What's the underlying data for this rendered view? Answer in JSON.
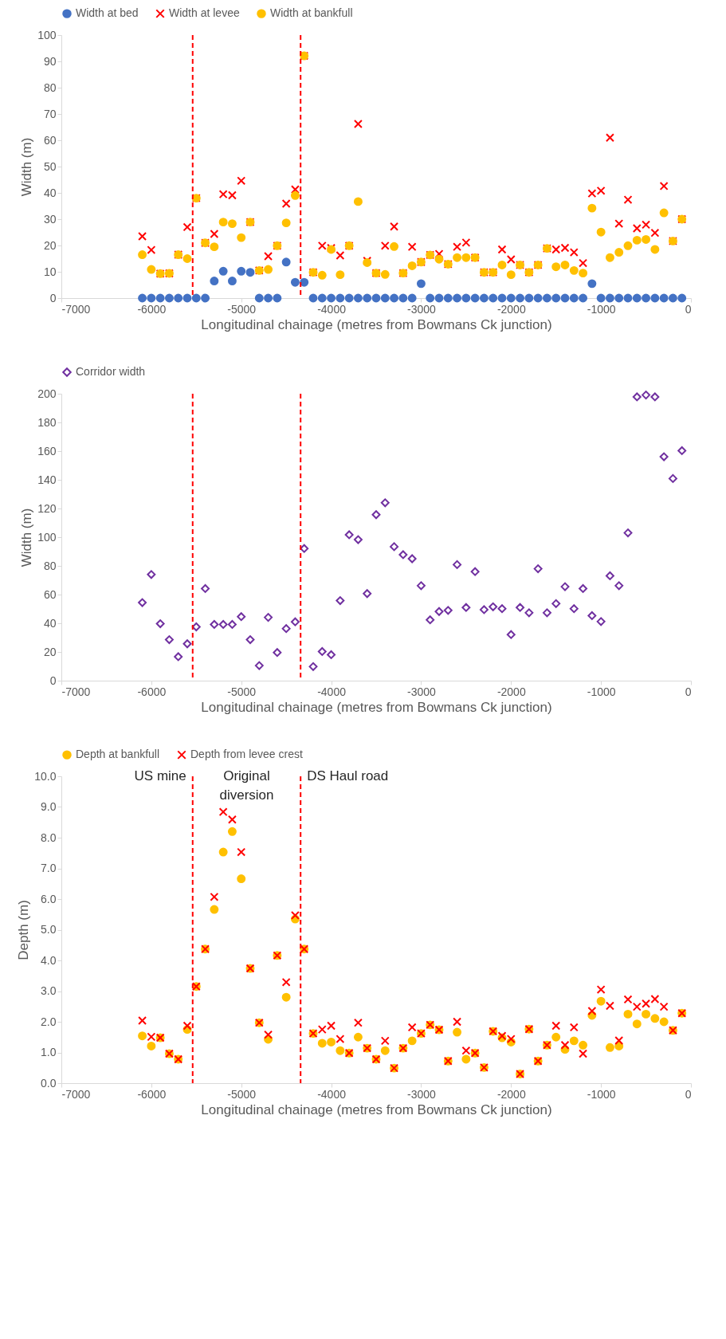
{
  "chart_data": [
    {
      "type": "scatter",
      "xlabel": "Longitudinal chainage (metres from Bowmans Ck junction)",
      "ylabel": "Width (m)",
      "legend": "top",
      "grid": false,
      "x": [
        -6100,
        -6000,
        -5900,
        -5800,
        -5700,
        -5600,
        -5500,
        -5400,
        -5300,
        -5200,
        -5100,
        -5000,
        -4900,
        -4800,
        -4700,
        -4600,
        -4500,
        -4400,
        -4300,
        -4200,
        -4100,
        -4000,
        -3900,
        -3800,
        -3700,
        -3600,
        -3500,
        -3400,
        -3300,
        -3200,
        -3100,
        -3000,
        -2900,
        -2800,
        -2700,
        -2600,
        -2500,
        -2400,
        -2300,
        -2200,
        -2100,
        -2000,
        -1900,
        -1800,
        -1700,
        -1600,
        -1500,
        -1400,
        -1300,
        -1200,
        -1100,
        -1000,
        -900,
        -800,
        -700,
        -600,
        -500,
        -400,
        -300,
        -200,
        -100
      ],
      "xlim": [
        -7000,
        0
      ],
      "xticks": [
        -7000,
        -6000,
        -5000,
        -4000,
        -3000,
        -2000,
        -1000,
        0
      ],
      "ylim": [
        0,
        100
      ],
      "yticks": [
        0,
        10,
        20,
        30,
        40,
        50,
        60,
        70,
        80,
        90,
        100
      ],
      "series": [
        {
          "name": "Width at bed",
          "color": "#4472c4",
          "marker": "circle",
          "values": [
            0,
            0,
            0,
            0,
            0,
            0,
            0,
            0,
            6.5,
            10.2,
            6.5,
            10.2,
            9.8,
            0,
            0,
            0,
            13.7,
            6,
            6,
            0,
            0,
            0,
            0,
            0,
            0,
            0,
            0,
            0,
            0,
            0,
            0,
            5.5,
            0,
            0,
            0,
            0,
            0,
            0,
            0,
            0,
            0,
            0,
            0,
            0,
            0,
            0,
            0,
            0,
            0,
            0,
            5.5,
            0,
            0,
            0,
            0,
            0,
            0,
            0,
            0,
            0,
            0
          ]
        },
        {
          "name": "Width at levee",
          "color": "#ff0000",
          "marker": "cross",
          "values": [
            23.5,
            18.3,
            9.3,
            9.4,
            16.5,
            27,
            38.0,
            21.0,
            24.4,
            39.5,
            39.1,
            44.6,
            28.9,
            10.5,
            15.9,
            19.9,
            35.9,
            41.3,
            92.1,
            9.8,
            19.9,
            19.0,
            16.2,
            19.9,
            66.2,
            14.2,
            9.5,
            19.9,
            27.2,
            9.5,
            19.5,
            13.7,
            16.4,
            16.8,
            12.9,
            19.5,
            21.1,
            15.4,
            9.8,
            9.8,
            18.5,
            14.7,
            12.6,
            9.8,
            12.6,
            18.9,
            18.5,
            19.1,
            17.4,
            13.3,
            39.8,
            40.8,
            61.0,
            28.3,
            37.4,
            26.5,
            27.9,
            24.8,
            42.6,
            21.7,
            30.0
          ]
        },
        {
          "name": "Width at bankfull",
          "color": "#ffc000",
          "marker": "circle",
          "values": [
            16.5,
            10.9,
            9.3,
            9.4,
            16.5,
            15.0,
            38.0,
            21.0,
            19.5,
            28.9,
            28.3,
            23.0,
            28.9,
            10.5,
            10.9,
            19.9,
            28.6,
            39.0,
            92.1,
            9.8,
            8.7,
            18.5,
            8.9,
            19.9,
            36.7,
            13.5,
            9.5,
            9.0,
            19.6,
            9.5,
            12.3,
            13.7,
            16.4,
            14.8,
            12.9,
            15.4,
            15.4,
            15.4,
            9.8,
            9.8,
            12.6,
            8.9,
            12.6,
            9.8,
            12.6,
            18.9,
            11.9,
            12.6,
            10.5,
            9.5,
            34.2,
            25.1,
            15.4,
            17.4,
            19.9,
            22.0,
            22.3,
            18.5,
            32.4,
            21.7,
            30.0
          ]
        }
      ],
      "ref_lines": [
        {
          "axis": "x",
          "value": -5540,
          "color": "#ff0000",
          "line_style": "dashed"
        },
        {
          "axis": "x",
          "value": -4340,
          "color": "#ff0000",
          "line_style": "dashed"
        }
      ]
    },
    {
      "type": "scatter",
      "xlabel": "Longitudinal chainage (metres from Bowmans Ck junction)",
      "ylabel": "Width (m)",
      "legend": "top",
      "grid": false,
      "x": [
        -6100,
        -6000,
        -5900,
        -5800,
        -5700,
        -5600,
        -5500,
        -5400,
        -5300,
        -5200,
        -5100,
        -5000,
        -4900,
        -4800,
        -4700,
        -4600,
        -4500,
        -4400,
        -4300,
        -4200,
        -4100,
        -4000,
        -3900,
        -3800,
        -3700,
        -3600,
        -3500,
        -3400,
        -3300,
        -3200,
        -3100,
        -3000,
        -2900,
        -2800,
        -2700,
        -2600,
        -2500,
        -2400,
        -2300,
        -2200,
        -2100,
        -2000,
        -1900,
        -1800,
        -1700,
        -1600,
        -1500,
        -1400,
        -1300,
        -1200,
        -1100,
        -1000,
        -900,
        -800,
        -700,
        -600,
        -500,
        -400,
        -300,
        -200,
        -100
      ],
      "xlim": [
        -7000,
        0
      ],
      "xticks": [
        -7000,
        -6000,
        -5000,
        -4000,
        -3000,
        -2000,
        -1000,
        0
      ],
      "ylim": [
        0,
        200
      ],
      "yticks": [
        0,
        20,
        40,
        60,
        80,
        100,
        120,
        140,
        160,
        180,
        200
      ],
      "series": [
        {
          "name": "Corridor width",
          "color": "#7030a0",
          "marker": "diamond",
          "values": [
            54.4,
            74.0,
            39.7,
            28.6,
            16.7,
            25.7,
            37.5,
            64.2,
            39.2,
            39.2,
            39.2,
            44.6,
            28.6,
            10.5,
            44.1,
            19.6,
            36.3,
            41.0,
            92.1,
            9.8,
            20.3,
            18.1,
            55.8,
            101.7,
            98.3,
            60.7,
            115.7,
            124.0,
            93.4,
            87.8,
            85.0,
            66.2,
            42.4,
            48.2,
            49.0,
            80.9,
            51.0,
            76.0,
            49.5,
            51.5,
            50.2,
            32.1,
            51.0,
            47.3,
            78.0,
            47.3,
            53.7,
            65.5,
            50.2,
            64.2,
            45.3,
            41.2,
            73.1,
            66.2,
            103.0,
            197.8,
            199.1,
            197.8,
            156.1,
            140.9,
            160.3
          ]
        }
      ],
      "ref_lines": [
        {
          "axis": "x",
          "value": -5540,
          "color": "#ff0000",
          "line_style": "dashed"
        },
        {
          "axis": "x",
          "value": -4340,
          "color": "#ff0000",
          "line_style": "dashed"
        }
      ]
    },
    {
      "type": "scatter",
      "xlabel": "Longitudinal chainage (metres from Bowmans Ck junction)",
      "ylabel": "Depth (m)",
      "legend": "top",
      "grid": false,
      "x": [
        -6100,
        -6000,
        -5900,
        -5800,
        -5700,
        -5600,
        -5500,
        -5400,
        -5300,
        -5200,
        -5100,
        -5000,
        -4900,
        -4800,
        -4700,
        -4600,
        -4500,
        -4400,
        -4300,
        -4200,
        -4100,
        -4000,
        -3900,
        -3800,
        -3700,
        -3600,
        -3500,
        -3400,
        -3300,
        -3200,
        -3100,
        -3000,
        -2900,
        -2800,
        -2700,
        -2600,
        -2500,
        -2400,
        -2300,
        -2200,
        -2100,
        -2000,
        -1900,
        -1800,
        -1700,
        -1600,
        -1500,
        -1400,
        -1300,
        -1200,
        -1100,
        -1000,
        -900,
        -800,
        -700,
        -600,
        -500,
        -400,
        -300,
        -200,
        -100
      ],
      "xlim": [
        -7000,
        0
      ],
      "xticks": [
        -7000,
        -6000,
        -5000,
        -4000,
        -3000,
        -2000,
        -1000,
        0
      ],
      "ylim": [
        0,
        10
      ],
      "yticks": [
        {
          "value": 0,
          "label": "0.0"
        },
        {
          "value": 1,
          "label": "1.0"
        },
        {
          "value": 2,
          "label": "2.0"
        },
        {
          "value": 3,
          "label": "3.0"
        },
        {
          "value": 4,
          "label": "4.0"
        },
        {
          "value": 5,
          "label": "5.0"
        },
        {
          "value": 6,
          "label": "6.0"
        },
        {
          "value": 7,
          "label": "7.0"
        },
        {
          "value": 8,
          "label": "8.0"
        },
        {
          "value": 9,
          "label": "9.0"
        },
        {
          "value": 10,
          "label": "10.0"
        }
      ],
      "series": [
        {
          "name": "Depth at bankfull",
          "color": "#ffc000",
          "marker": "circle",
          "values": [
            1.54,
            1.21,
            1.48,
            0.96,
            0.78,
            1.75,
            3.15,
            4.37,
            5.66,
            7.53,
            8.2,
            6.66,
            3.74,
            1.97,
            1.43,
            4.16,
            2.8,
            5.35,
            4.37,
            1.62,
            1.3,
            1.34,
            1.06,
            0.98,
            1.5,
            1.14,
            0.78,
            1.06,
            0.49,
            1.14,
            1.38,
            1.62,
            1.9,
            1.74,
            0.72,
            1.66,
            0.78,
            0.98,
            0.51,
            1.69,
            1.48,
            1.34,
            0.3,
            1.76,
            0.72,
            1.24,
            1.5,
            1.1,
            1.38,
            1.24,
            2.21,
            2.67,
            1.16,
            1.21,
            2.25,
            1.93,
            2.25,
            2.11,
            2.0,
            1.72,
            2.28
          ]
        },
        {
          "name": "Depth from levee crest",
          "color": "#ff0000",
          "marker": "cross",
          "values": [
            2.04,
            1.51,
            1.48,
            0.96,
            0.78,
            1.87,
            3.15,
            4.37,
            6.07,
            8.84,
            8.59,
            7.53,
            3.74,
            1.97,
            1.58,
            4.16,
            3.29,
            5.47,
            4.37,
            1.62,
            1.75,
            1.87,
            1.44,
            0.98,
            1.97,
            1.14,
            0.78,
            1.38,
            0.49,
            1.14,
            1.82,
            1.62,
            1.9,
            1.74,
            0.72,
            2.0,
            1.06,
            0.98,
            0.51,
            1.69,
            1.54,
            1.44,
            0.3,
            1.76,
            0.72,
            1.24,
            1.87,
            1.24,
            1.82,
            0.96,
            2.35,
            3.05,
            2.52,
            1.39,
            2.73,
            2.49,
            2.59,
            2.74,
            2.49,
            1.72,
            2.28
          ]
        }
      ],
      "ref_lines": [
        {
          "axis": "x",
          "value": -5540,
          "color": "#ff0000",
          "line_style": "dashed"
        },
        {
          "axis": "x",
          "value": -4340,
          "color": "#ff0000",
          "line_style": "dashed"
        }
      ],
      "annotations": [
        "US mine",
        "Original diversion",
        "DS Haul road"
      ]
    }
  ]
}
